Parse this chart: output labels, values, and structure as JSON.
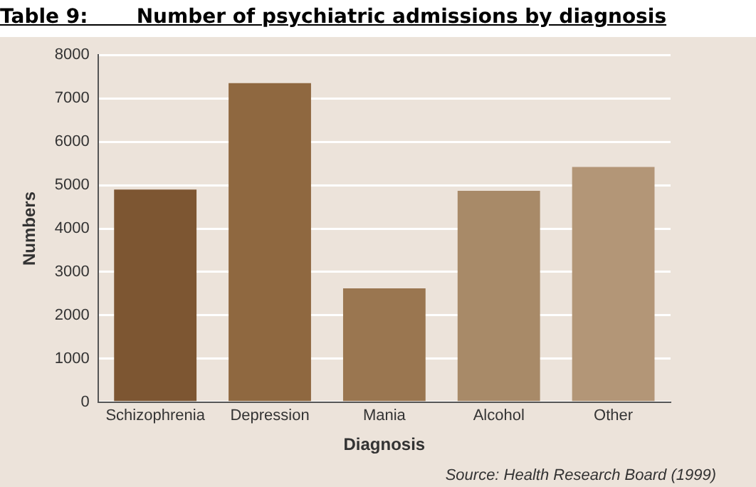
{
  "chart_data": {
    "type": "bar",
    "title": "Table 9:       Number of psychiatric admissions by diagnosis",
    "xlabel": "Diagnosis",
    "ylabel": "Numbers",
    "categories": [
      "Schizophrenia",
      "Depression",
      "Mania",
      "Alcohol",
      "Other"
    ],
    "values": [
      4900,
      7350,
      2620,
      4870,
      5420
    ],
    "colors": [
      "#7d5632",
      "#8f6840",
      "#9a7650",
      "#a88a68",
      "#b39677"
    ],
    "ylim": [
      0,
      8000
    ],
    "yticks": [
      0,
      1000,
      2000,
      3000,
      4000,
      5000,
      6000,
      7000,
      8000
    ],
    "grid": "y",
    "legend": false,
    "annotations": [
      "Source: Health Research Board (1999)"
    ]
  }
}
